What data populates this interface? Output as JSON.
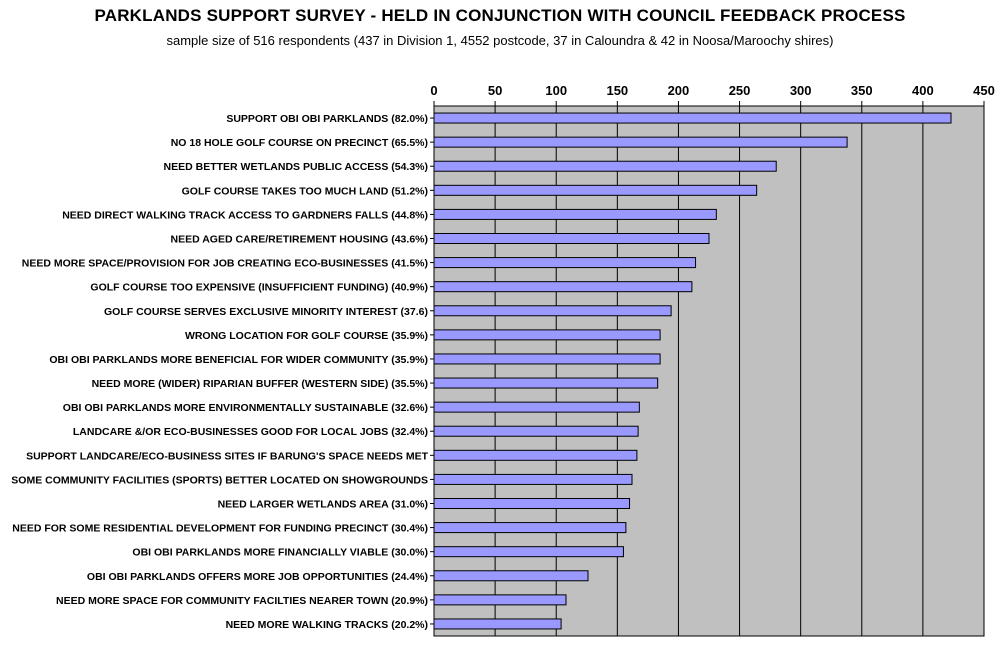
{
  "chart_data": {
    "type": "bar",
    "orientation": "horizontal",
    "title": "PARKLANDS SUPPORT SURVEY - HELD IN CONJUNCTION WITH COUNCIL FEEDBACK PROCESS",
    "subtitle": "sample size of 516 respondents (437 in Division 1, 4552 postcode, 37 in Caloundra & 42 in Noosa/Maroochy shires)",
    "xlim": [
      0,
      450
    ],
    "ticks": [
      0,
      50,
      100,
      150,
      200,
      250,
      300,
      350,
      400,
      450
    ],
    "axis_position": "top",
    "grid": true,
    "colors": {
      "bar": "#9999ff",
      "plot_bg": "#c0c0c0",
      "grid": "#000000"
    },
    "categories": [
      "SUPPORT OBI OBI PARKLANDS (82.0%)",
      "NO 18 HOLE GOLF COURSE ON PRECINCT (65.5%)",
      "NEED BETTER WETLANDS PUBLIC ACCESS (54.3%)",
      "GOLF COURSE TAKES TOO MUCH LAND (51.2%)",
      "NEED DIRECT WALKING TRACK ACCESS TO GARDNERS FALLS (44.8%)",
      "NEED AGED CARE/RETIREMENT HOUSING (43.6%)",
      "NEED MORE SPACE/PROVISION FOR JOB CREATING ECO-BUSINESSES (41.5%)",
      "GOLF COURSE TOO EXPENSIVE (INSUFFICIENT FUNDING) (40.9%)",
      "GOLF COURSE SERVES EXCLUSIVE MINORITY INTEREST (37.6)",
      "WRONG LOCATION FOR GOLF COURSE (35.9%)",
      "OBI OBI PARKLANDS MORE BENEFICIAL FOR WIDER COMMUNITY (35.9%)",
      "NEED MORE (WIDER) RIPARIAN BUFFER (WESTERN SIDE) (35.5%)",
      "OBI OBI PARKLANDS MORE ENVIRONMENTALLY SUSTAINABLE (32.6%)",
      "LANDCARE &/OR ECO-BUSINESSES GOOD FOR LOCAL JOBS (32.4%)",
      "SUPPORT LANDCARE/ECO-BUSINESS SITES IF BARUNG'S SPACE NEEDS MET",
      "SOME COMMUNITY FACILITIES (SPORTS) BETTER LOCATED ON SHOWGROUNDS",
      "NEED LARGER WETLANDS AREA (31.0%)",
      "NEED FOR SOME RESIDENTIAL DEVELOPMENT FOR FUNDING PRECINCT (30.4%)",
      "OBI OBI PARKLANDS MORE FINANCIALLY VIABLE (30.0%)",
      "OBI OBI PARKLANDS OFFERS MORE JOB OPPORTUNITIES (24.4%)",
      "NEED MORE SPACE FOR COMMUNITY FACILTIES NEARER TOWN (20.9%)",
      "NEED MORE WALKING TRACKS (20.2%)"
    ],
    "values": [
      423,
      338,
      280,
      264,
      231,
      225,
      214,
      211,
      194,
      185,
      185,
      183,
      168,
      167,
      166,
      162,
      160,
      157,
      155,
      126,
      108,
      104
    ]
  }
}
